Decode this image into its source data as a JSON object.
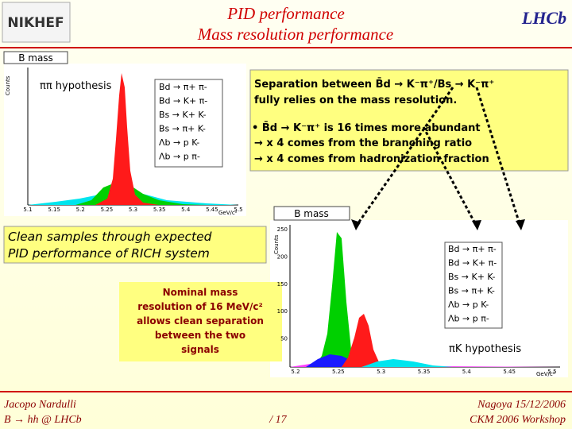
{
  "header": {
    "title_line1": "PID performance",
    "title_line2": "Mass resolution performance",
    "logo_left": "NIKHEF",
    "logo_right": "LHCb"
  },
  "plots": [
    {
      "label": "B mass",
      "hypothesis": "ππ hypothesis",
      "y_axis_title": "Counts",
      "x_axis_title": "GeV/c²",
      "x_ticks": [
        "5.1",
        "5.15",
        "5.2",
        "5.25",
        "5.3",
        "5.35",
        "5.4",
        "5.45",
        "5.5"
      ],
      "legend": [
        "Bd → π+ π-",
        "Bd → K+ π-",
        "Bs → K+ K-",
        "Bs → π+ K-",
        "Λb → p K-",
        "Λb → p π-"
      ]
    },
    {
      "label": "B mass",
      "hypothesis": "πK hypothesis",
      "y_axis_title": "Counts",
      "x_axis_title": "GeV/c²",
      "x_ticks": [
        "5.2",
        "5.25",
        "5.3",
        "5.35",
        "5.4",
        "5.45",
        "5.5"
      ],
      "y_ticks": [
        "250",
        "200",
        "150",
        "100",
        "50"
      ],
      "legend": [
        "Bd → π+ π-",
        "Bd → K+ π-",
        "Bs → K+ K-",
        "Bs → π+ K-",
        "Λb → p K-",
        "Λb → p π-"
      ]
    }
  ],
  "separation_box": {
    "line1": "Separation between B̄d → K⁻π⁺/Bs → K⁻π⁺",
    "line2": "fully relies on the mass resolution.",
    "bullet": "• B̄d → K⁻π⁺ is 16 times more abundant",
    "sub1": "→ x 4 comes from the branching ratio",
    "sub2": "→ x 4 comes from hadronization fraction"
  },
  "clean_box": {
    "line1": "Clean samples through expected",
    "line2": "PID performance of RICH system"
  },
  "nominal_box": {
    "lines": [
      "Nominal mass",
      "resolution of 16 MeV/c²",
      "allows clean separation",
      "between the two",
      "signals"
    ]
  },
  "footer": {
    "author": "Jacopo Nardulli",
    "topic": "B → hh @ LHCb",
    "page": "/ 17",
    "place_date": "Nagoya 15/12/2006",
    "event": "CKM 2006 Workshop"
  }
}
